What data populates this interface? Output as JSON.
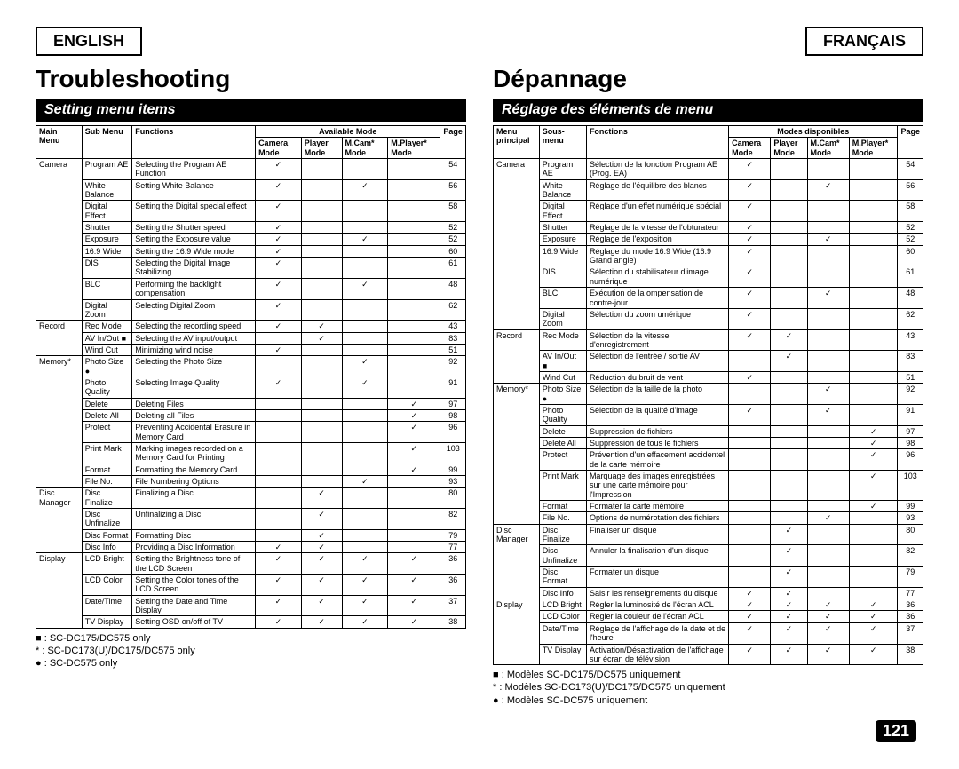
{
  "langL": "ENGLISH",
  "langR": "FRANÇAIS",
  "titleL": "Troubleshooting",
  "titleR": "Dépannage",
  "subL": "Setting menu items",
  "subR": "Réglage des éléments de menu",
  "hdr": {
    "L": {
      "main": "Main Menu",
      "sub": "Sub Menu",
      "fn": "Functions",
      "avail": "Available Mode",
      "cam": "Camera Mode",
      "pl": "Player Mode",
      "mc": "M.Cam* Mode",
      "mp": "M.Player* Mode",
      "pg": "Page"
    },
    "R": {
      "main": "Menu principal",
      "sub": "Sous-menu",
      "fn": "Fonctions",
      "avail": "Modes disponibles",
      "cam": "Camera Mode",
      "pl": "Player Mode",
      "mc": "M.Cam* Mode",
      "mp": "M.Player* Mode",
      "pg": "Page"
    }
  },
  "chk": "✓",
  "rowsL": [
    [
      "Camera",
      "Program AE",
      "Selecting the Program AE Function",
      "1",
      "",
      "",
      "",
      "54"
    ],
    [
      "",
      "White Balance",
      "Setting White Balance",
      "1",
      "",
      "1",
      "",
      "56"
    ],
    [
      "",
      "Digital Effect",
      "Setting the Digital special effect",
      "1",
      "",
      "",
      "",
      "58"
    ],
    [
      "",
      "Shutter",
      "Setting the Shutter speed",
      "1",
      "",
      "",
      "",
      "52"
    ],
    [
      "",
      "Exposure",
      "Setting the Exposure value",
      "1",
      "",
      "1",
      "",
      "52"
    ],
    [
      "",
      "16:9 Wide",
      "Setting the 16:9 Wide mode",
      "1",
      "",
      "",
      "",
      "60"
    ],
    [
      "",
      "DIS",
      "Selecting the Digital Image Stabilizing",
      "1",
      "",
      "",
      "",
      "61"
    ],
    [
      "",
      "BLC",
      "Performing the backlight compensation",
      "1",
      "",
      "1",
      "",
      "48"
    ],
    [
      "",
      "Digital Zoom",
      "Selecting Digital Zoom",
      "1",
      "",
      "",
      "",
      "62"
    ],
    [
      "Record",
      "Rec Mode",
      "Selecting the recording speed",
      "1",
      "1",
      "",
      "",
      "43"
    ],
    [
      "",
      "AV In/Out ■",
      "Selecting the AV input/output",
      "",
      "1",
      "",
      "",
      "83"
    ],
    [
      "",
      "Wind Cut",
      "Minimizing wind noise",
      "1",
      "",
      "",
      "",
      "51"
    ],
    [
      "Memory*",
      "Photo Size ●",
      "Selecting the Photo Size",
      "",
      "",
      "1",
      "",
      "92"
    ],
    [
      "",
      "Photo Quality",
      "Selecting Image Quality",
      "1",
      "",
      "1",
      "",
      "91"
    ],
    [
      "",
      "Delete",
      "Deleting Files",
      "",
      "",
      "",
      "1",
      "97"
    ],
    [
      "",
      "Delete All",
      "Deleting all Files",
      "",
      "",
      "",
      "1",
      "98"
    ],
    [
      "",
      "Protect",
      "Preventing Accidental Erasure in Memory Card",
      "",
      "",
      "",
      "1",
      "96"
    ],
    [
      "",
      "Print Mark",
      "Marking images recorded on a Memory Card for Printing",
      "",
      "",
      "",
      "1",
      "103"
    ],
    [
      "",
      "Format",
      "Formatting the Memory Card",
      "",
      "",
      "",
      "1",
      "99"
    ],
    [
      "",
      "File No.",
      "File Numbering Options",
      "",
      "",
      "1",
      "",
      "93"
    ],
    [
      "Disc Manager",
      "Disc Finalize",
      "Finalizing a Disc",
      "",
      "1",
      "",
      "",
      "80"
    ],
    [
      "",
      "Disc Unfinalize",
      "Unfinalizing a Disc",
      "",
      "1",
      "",
      "",
      "82"
    ],
    [
      "",
      "Disc Format",
      "Formatting Disc",
      "",
      "1",
      "",
      "",
      "79"
    ],
    [
      "",
      "Disc Info",
      "Providing a Disc Information",
      "1",
      "1",
      "",
      "",
      "77"
    ],
    [
      "Display",
      "LCD Bright",
      "Setting the Brightness tone of the LCD Screen",
      "1",
      "1",
      "1",
      "1",
      "36"
    ],
    [
      "",
      "LCD Color",
      "Setting the Color tones of the LCD Screen",
      "1",
      "1",
      "1",
      "1",
      "36"
    ],
    [
      "",
      "Date/Time",
      "Setting the Date and Time Display",
      "1",
      "1",
      "1",
      "1",
      "37"
    ],
    [
      "",
      "TV Display",
      "Setting OSD on/off of TV",
      "1",
      "1",
      "1",
      "1",
      "38"
    ]
  ],
  "rowsR": [
    [
      "Camera",
      "Program AE",
      "Sélection de la fonction Program AE (Prog. EA)",
      "1",
      "",
      "",
      "",
      "54"
    ],
    [
      "",
      "White Balance",
      "Réglage de l'équilibre des blancs",
      "1",
      "",
      "1",
      "",
      "56"
    ],
    [
      "",
      "Digital Effect",
      "Réglage d'un effet numérique spécial",
      "1",
      "",
      "",
      "",
      "58"
    ],
    [
      "",
      "Shutter",
      "Réglage de la vitesse de l'obturateur",
      "1",
      "",
      "",
      "",
      "52"
    ],
    [
      "",
      "Exposure",
      "Réglage de l'exposition",
      "1",
      "",
      "1",
      "",
      "52"
    ],
    [
      "",
      "16:9 Wide",
      "Réglage du mode 16:9 Wide (16:9 Grand angle)",
      "1",
      "",
      "",
      "",
      "60"
    ],
    [
      "",
      "DIS",
      "Sélection du stabilisateur d'image numérique",
      "1",
      "",
      "",
      "",
      "61"
    ],
    [
      "",
      "BLC",
      "Exécution de la ompensation de contre-jour",
      "1",
      "",
      "1",
      "",
      "48"
    ],
    [
      "",
      "Digital Zoom",
      "Sélection du zoom umérique",
      "1",
      "",
      "",
      "",
      "62"
    ],
    [
      "Record",
      "Rec Mode",
      "Sélection de la vitesse d'enregistrement",
      "1",
      "1",
      "",
      "",
      "43"
    ],
    [
      "",
      "AV In/Out ■",
      "Sélection de l'entrée / sortie AV",
      "",
      "1",
      "",
      "",
      "83"
    ],
    [
      "",
      "Wind Cut",
      "Réduction du bruit de vent",
      "1",
      "",
      "",
      "",
      "51"
    ],
    [
      "Memory*",
      "Photo Size ●",
      "Sélection de la taille de la photo",
      "",
      "",
      "1",
      "",
      "92"
    ],
    [
      "",
      "Photo Quality",
      "Sélection de la qualité d'image",
      "1",
      "",
      "1",
      "",
      "91"
    ],
    [
      "",
      "Delete",
      "Suppression de fichiers",
      "",
      "",
      "",
      "1",
      "97"
    ],
    [
      "",
      "Delete All",
      "Suppression de tous le fichiers",
      "",
      "",
      "",
      "1",
      "98"
    ],
    [
      "",
      "Protect",
      "Prévention d'un effacement accidentel de la carte mémoire",
      "",
      "",
      "",
      "1",
      "96"
    ],
    [
      "",
      "Print Mark",
      "Marquage des images enregistrées sur une carte mémoire pour l'Impression",
      "",
      "",
      "",
      "1",
      "103"
    ],
    [
      "",
      "Format",
      "Formater la carte mémoire",
      "",
      "",
      "",
      "1",
      "99"
    ],
    [
      "",
      "File No.",
      "Options de numérotation des fichiers",
      "",
      "",
      "1",
      "",
      "93"
    ],
    [
      "Disc Manager",
      "Disc Finalize",
      "Finaliser un disque",
      "",
      "1",
      "",
      "",
      "80"
    ],
    [
      "",
      "Disc Unfinalize",
      "Annuler la finalisation d'un disque",
      "",
      "1",
      "",
      "",
      "82"
    ],
    [
      "",
      "Disc Format",
      "Formater un disque",
      "",
      "1",
      "",
      "",
      "79"
    ],
    [
      "",
      "Disc Info",
      "Saisir les renseignements du disque",
      "1",
      "1",
      "",
      "",
      "77"
    ],
    [
      "Display",
      "LCD Bright",
      "Régler la luminosité de l'écran ACL",
      "1",
      "1",
      "1",
      "1",
      "36"
    ],
    [
      "",
      "LCD Color",
      "Régler la couleur de l'écran ACL",
      "1",
      "1",
      "1",
      "1",
      "36"
    ],
    [
      "",
      "Date/Time",
      "Réglage de l'affichage de la date et de l'heure",
      "1",
      "1",
      "1",
      "1",
      "37"
    ],
    [
      "",
      "TV Display",
      "Activation/Désactivation de l'affichage sur écran de télévision",
      "1",
      "1",
      "1",
      "1",
      "38"
    ]
  ],
  "notesL": [
    "■ : SC-DC175/DC575 only",
    "* : SC-DC173(U)/DC175/DC575 only",
    "● : SC-DC575 only"
  ],
  "notesR": [
    "■ : Modèles SC-DC175/DC575 uniquement",
    "* : Modèles SC-DC173(U)/DC175/DC575 uniquement",
    "● : Modèles SC-DC575 uniquement"
  ],
  "pagenum": "121"
}
